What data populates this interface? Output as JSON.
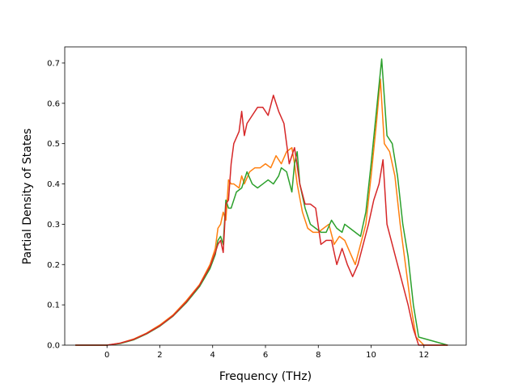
{
  "chart_data": {
    "type": "line",
    "title": "",
    "xlabel": "Frequency (THz)",
    "ylabel": "Partial Density of States",
    "xlim": [
      -1.6,
      13.6
    ],
    "ylim": [
      0.0,
      0.74
    ],
    "xticks": [
      0,
      2,
      4,
      6,
      8,
      10,
      12
    ],
    "yticks": [
      0.0,
      0.1,
      0.2,
      0.3,
      0.4,
      0.5,
      0.6,
      0.7
    ],
    "grid": false,
    "legend": "none",
    "series": [
      {
        "color": "#ff7f0e",
        "x": [
          -1.2,
          0.0,
          0.5,
          1.0,
          1.5,
          2.0,
          2.5,
          3.0,
          3.5,
          3.9,
          4.1,
          4.2,
          4.3,
          4.4,
          4.5,
          4.6,
          4.7,
          4.8,
          5.0,
          5.1,
          5.2,
          5.4,
          5.6,
          5.8,
          6.0,
          6.2,
          6.4,
          6.6,
          6.8,
          7.0,
          7.1,
          7.2,
          7.4,
          7.6,
          7.8,
          8.0,
          8.2,
          8.4,
          8.6,
          8.8,
          9.0,
          9.2,
          9.4,
          9.6,
          9.8,
          10.0,
          10.2,
          10.35,
          10.5,
          10.7,
          10.9,
          11.1,
          11.3,
          11.5,
          11.7,
          12.0,
          12.9
        ],
        "y": [
          0.0,
          0.0,
          0.005,
          0.015,
          0.03,
          0.05,
          0.075,
          0.11,
          0.15,
          0.2,
          0.24,
          0.29,
          0.3,
          0.33,
          0.31,
          0.41,
          0.4,
          0.4,
          0.39,
          0.42,
          0.4,
          0.43,
          0.44,
          0.44,
          0.45,
          0.44,
          0.47,
          0.45,
          0.48,
          0.49,
          0.45,
          0.4,
          0.33,
          0.29,
          0.28,
          0.28,
          0.29,
          0.3,
          0.25,
          0.27,
          0.26,
          0.23,
          0.2,
          0.25,
          0.3,
          0.42,
          0.55,
          0.66,
          0.5,
          0.48,
          0.42,
          0.3,
          0.2,
          0.1,
          0.02,
          0.0,
          0.0
        ]
      },
      {
        "color": "#2ca02c",
        "x": [
          -1.2,
          0.0,
          0.5,
          1.0,
          1.5,
          2.0,
          2.5,
          3.0,
          3.5,
          3.9,
          4.1,
          4.2,
          4.3,
          4.4,
          4.5,
          4.6,
          4.7,
          4.9,
          5.1,
          5.3,
          5.5,
          5.7,
          5.9,
          6.1,
          6.3,
          6.5,
          6.6,
          6.8,
          7.0,
          7.1,
          7.2,
          7.3,
          7.5,
          7.7,
          7.9,
          8.1,
          8.3,
          8.5,
          8.7,
          8.9,
          9.0,
          9.2,
          9.4,
          9.6,
          9.8,
          10.0,
          10.2,
          10.4,
          10.6,
          10.8,
          11.0,
          11.2,
          11.4,
          11.6,
          11.8,
          12.9
        ],
        "y": [
          0.0,
          0.0,
          0.004,
          0.013,
          0.028,
          0.047,
          0.072,
          0.105,
          0.145,
          0.19,
          0.225,
          0.26,
          0.27,
          0.25,
          0.36,
          0.34,
          0.34,
          0.38,
          0.39,
          0.43,
          0.4,
          0.39,
          0.4,
          0.41,
          0.4,
          0.42,
          0.44,
          0.43,
          0.38,
          0.45,
          0.48,
          0.4,
          0.34,
          0.3,
          0.29,
          0.28,
          0.28,
          0.31,
          0.29,
          0.28,
          0.3,
          0.29,
          0.28,
          0.27,
          0.33,
          0.45,
          0.58,
          0.71,
          0.52,
          0.5,
          0.42,
          0.3,
          0.22,
          0.1,
          0.02,
          0.0
        ]
      },
      {
        "color": "#d62728",
        "x": [
          -1.2,
          0.0,
          0.5,
          1.0,
          1.5,
          2.0,
          2.5,
          3.0,
          3.5,
          3.9,
          4.1,
          4.2,
          4.3,
          4.4,
          4.5,
          4.6,
          4.7,
          4.8,
          5.0,
          5.1,
          5.2,
          5.3,
          5.5,
          5.7,
          5.9,
          6.1,
          6.3,
          6.5,
          6.7,
          6.9,
          7.1,
          7.3,
          7.5,
          7.7,
          7.9,
          8.1,
          8.3,
          8.5,
          8.7,
          8.9,
          9.1,
          9.3,
          9.5,
          9.7,
          9.9,
          10.1,
          10.3,
          10.45,
          10.6,
          10.8,
          11.0,
          11.2,
          11.4,
          11.6,
          11.8,
          12.9
        ],
        "y": [
          0.0,
          0.0,
          0.005,
          0.014,
          0.029,
          0.048,
          0.073,
          0.107,
          0.148,
          0.195,
          0.23,
          0.25,
          0.26,
          0.23,
          0.35,
          0.36,
          0.45,
          0.5,
          0.53,
          0.58,
          0.52,
          0.55,
          0.57,
          0.59,
          0.59,
          0.57,
          0.62,
          0.58,
          0.55,
          0.45,
          0.49,
          0.4,
          0.35,
          0.35,
          0.34,
          0.25,
          0.26,
          0.26,
          0.2,
          0.24,
          0.2,
          0.17,
          0.2,
          0.25,
          0.3,
          0.36,
          0.4,
          0.46,
          0.3,
          0.25,
          0.2,
          0.15,
          0.1,
          0.04,
          0.0,
          0.0
        ]
      }
    ]
  }
}
